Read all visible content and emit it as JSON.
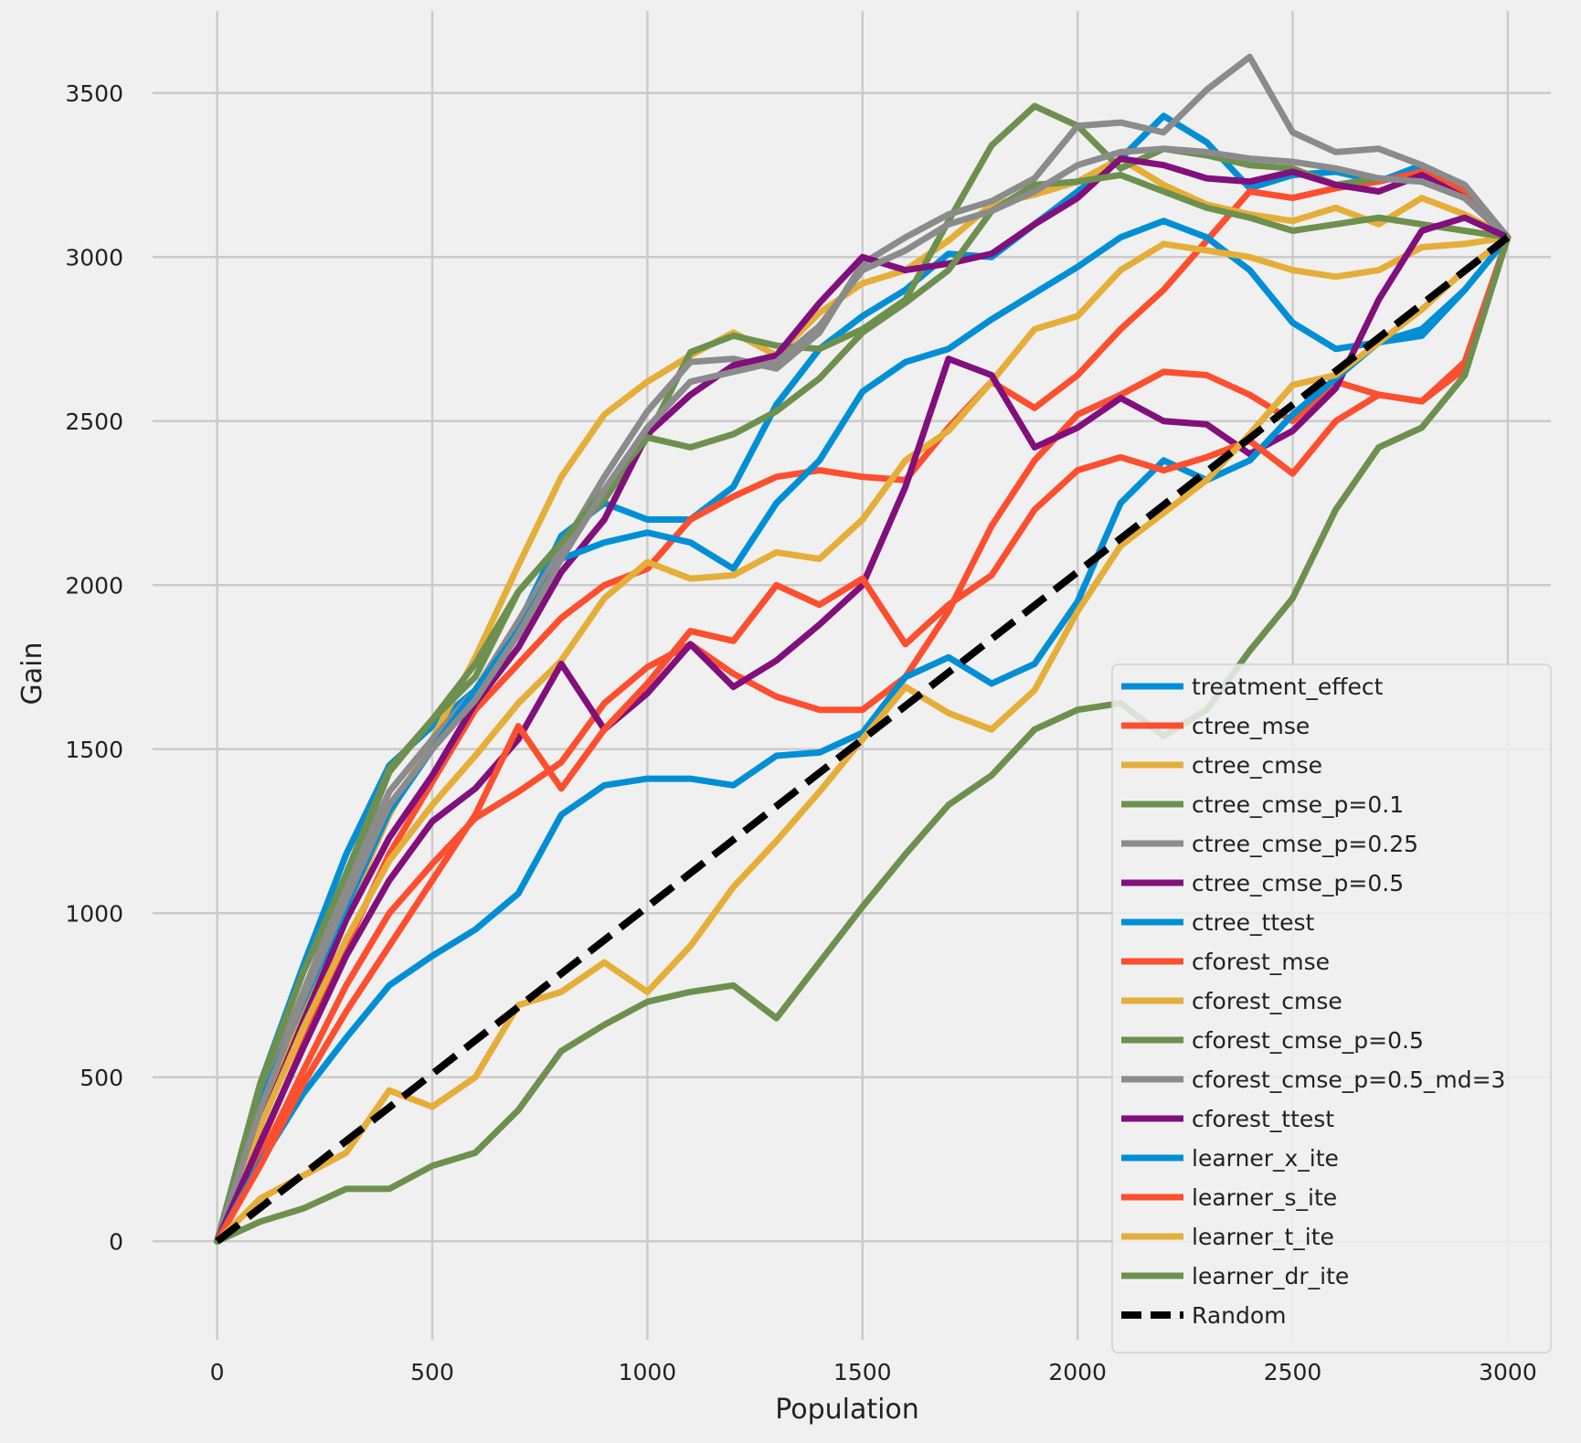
{
  "chart_data": {
    "type": "line",
    "title": "",
    "xlabel": "Population",
    "ylabel": "Gain",
    "xlim": [
      -150,
      3100
    ],
    "ylim": [
      -300,
      3750
    ],
    "x_ticks": [
      0,
      500,
      1000,
      1500,
      2000,
      2500,
      3000
    ],
    "y_ticks": [
      0,
      500,
      1000,
      1500,
      2000,
      2500,
      3000,
      3500
    ],
    "grid": true,
    "legend_position": "lower-right",
    "series": [
      {
        "name": "treatment_effect",
        "color": "#008fd5",
        "x": [
          0,
          100,
          200,
          300,
          400,
          500,
          600,
          700,
          800,
          900,
          1000,
          1100,
          1200,
          1300,
          1400,
          1500,
          1600,
          1700,
          1800,
          1900,
          2000,
          2100,
          2200,
          2300,
          2400,
          2500,
          2600,
          2700,
          2800,
          2900,
          3000
        ],
        "y": [
          0,
          480,
          840,
          1180,
          1450,
          1570,
          1680,
          1880,
          2150,
          2250,
          2200,
          2200,
          2300,
          2550,
          2720,
          2820,
          2900,
          3010,
          3000,
          3100,
          3200,
          3300,
          3430,
          3350,
          3210,
          3250,
          3260,
          3230,
          3280,
          3180,
          3060
        ]
      },
      {
        "name": "ctree_mse",
        "color": "#fc4f30",
        "x": [
          0,
          100,
          200,
          300,
          400,
          500,
          600,
          700,
          800,
          900,
          1000,
          1100,
          1200,
          1300,
          1400,
          1500,
          1600,
          1700,
          1800,
          1900,
          2000,
          2100,
          2200,
          2300,
          2400,
          2500,
          2600,
          2700,
          2800,
          2900,
          3000
        ],
        "y": [
          0,
          290,
          600,
          900,
          1180,
          1400,
          1620,
          1760,
          1900,
          2000,
          2050,
          2200,
          2270,
          2330,
          2350,
          2330,
          2320,
          2480,
          2620,
          2540,
          2640,
          2780,
          2900,
          3050,
          3200,
          3180,
          3210,
          3230,
          3260,
          3200,
          3060
        ]
      },
      {
        "name": "ctree_cmse",
        "color": "#e5ae38",
        "x": [
          0,
          100,
          200,
          300,
          400,
          500,
          600,
          700,
          800,
          900,
          1000,
          1100,
          1200,
          1300,
          1400,
          1500,
          1600,
          1700,
          1800,
          1900,
          2000,
          2100,
          2200,
          2300,
          2400,
          2500,
          2600,
          2700,
          2800,
          2900,
          3000
        ],
        "y": [
          0,
          400,
          720,
          1000,
          1300,
          1530,
          1780,
          2060,
          2330,
          2520,
          2620,
          2700,
          2770,
          2700,
          2830,
          2920,
          2960,
          3050,
          3160,
          3190,
          3230,
          3300,
          3220,
          3160,
          3130,
          3110,
          3150,
          3100,
          3180,
          3130,
          3060
        ]
      },
      {
        "name": "ctree_cmse_p=0.1",
        "color": "#6d904f",
        "x": [
          0,
          100,
          200,
          300,
          400,
          500,
          600,
          700,
          800,
          900,
          1000,
          1100,
          1200,
          1300,
          1400,
          1500,
          1600,
          1700,
          1800,
          1900,
          2000,
          2100,
          2200,
          2300,
          2400,
          2500,
          2600,
          2700,
          2800,
          2900,
          3000
        ],
        "y": [
          0,
          480,
          820,
          1100,
          1430,
          1590,
          1720,
          1980,
          2130,
          2260,
          2450,
          2710,
          2760,
          2730,
          2720,
          2780,
          2870,
          3110,
          3340,
          3460,
          3400,
          3270,
          3330,
          3310,
          3280,
          3270,
          3220,
          3240,
          3230,
          3180,
          3060
        ]
      },
      {
        "name": "ctree_cmse_p=0.25",
        "color": "#8b8b8b",
        "x": [
          0,
          100,
          200,
          300,
          400,
          500,
          600,
          700,
          800,
          900,
          1000,
          1100,
          1200,
          1300,
          1400,
          1500,
          1600,
          1700,
          1800,
          1900,
          2000,
          2100,
          2200,
          2300,
          2400,
          2500,
          2600,
          2700,
          2800,
          2900,
          3000
        ],
        "y": [
          0,
          430,
          760,
          1080,
          1370,
          1530,
          1680,
          1890,
          2110,
          2330,
          2530,
          2680,
          2690,
          2660,
          2770,
          2980,
          3060,
          3130,
          3170,
          3240,
          3400,
          3410,
          3380,
          3510,
          3610,
          3380,
          3320,
          3330,
          3280,
          3220,
          3060
        ]
      },
      {
        "name": "ctree_cmse_p=0.5",
        "color": "#810f7c",
        "x": [
          0,
          100,
          200,
          300,
          400,
          500,
          600,
          700,
          800,
          900,
          1000,
          1100,
          1200,
          1300,
          1400,
          1500,
          1600,
          1700,
          1800,
          1900,
          2000,
          2100,
          2200,
          2300,
          2400,
          2500,
          2600,
          2700,
          2800,
          2900,
          3000
        ],
        "y": [
          0,
          350,
          670,
          980,
          1230,
          1420,
          1640,
          1810,
          2040,
          2200,
          2460,
          2580,
          2670,
          2700,
          2860,
          3000,
          2960,
          2980,
          3010,
          3100,
          3180,
          3300,
          3280,
          3240,
          3230,
          3260,
          3220,
          3200,
          3250,
          3180,
          3060
        ]
      },
      {
        "name": "ctree_ttest",
        "color": "#008fd5",
        "x": [
          0,
          100,
          200,
          300,
          400,
          500,
          600,
          700,
          800,
          900,
          1000,
          1100,
          1200,
          1300,
          1400,
          1500,
          1600,
          1700,
          1800,
          1900,
          2000,
          2100,
          2200,
          2300,
          2400,
          2500,
          2600,
          2700,
          2800,
          2900,
          3000
        ],
        "y": [
          0,
          420,
          730,
          1020,
          1310,
          1500,
          1680,
          1860,
          2080,
          2130,
          2160,
          2130,
          2050,
          2250,
          2380,
          2590,
          2680,
          2720,
          2810,
          2890,
          2970,
          3060,
          3110,
          3060,
          2960,
          2800,
          2720,
          2740,
          2780,
          2900,
          3060
        ]
      },
      {
        "name": "cforest_mse",
        "color": "#fc4f30",
        "x": [
          0,
          100,
          200,
          300,
          400,
          500,
          600,
          700,
          800,
          900,
          1000,
          1100,
          1200,
          1300,
          1400,
          1500,
          1600,
          1700,
          1800,
          1900,
          2000,
          2100,
          2200,
          2300,
          2400,
          2500,
          2600,
          2700,
          2800,
          2900,
          3000
        ],
        "y": [
          0,
          250,
          520,
          780,
          1000,
          1150,
          1290,
          1370,
          1460,
          1640,
          1750,
          1820,
          1730,
          1660,
          1620,
          1620,
          1720,
          1920,
          2180,
          2380,
          2520,
          2580,
          2650,
          2640,
          2580,
          2500,
          2620,
          2580,
          2560,
          2680,
          3060
        ]
      },
      {
        "name": "cforest_cmse",
        "color": "#e5ae38",
        "x": [
          0,
          100,
          200,
          300,
          400,
          500,
          600,
          700,
          800,
          900,
          1000,
          1100,
          1200,
          1300,
          1400,
          1500,
          1600,
          1700,
          1800,
          1900,
          2000,
          2100,
          2200,
          2300,
          2400,
          2500,
          2600,
          2700,
          2800,
          2900,
          3000
        ],
        "y": [
          0,
          350,
          650,
          920,
          1160,
          1330,
          1480,
          1640,
          1770,
          1960,
          2070,
          2020,
          2030,
          2100,
          2080,
          2200,
          2380,
          2470,
          2620,
          2780,
          2820,
          2960,
          3040,
          3020,
          3000,
          2960,
          2940,
          2960,
          3030,
          3040,
          3060
        ]
      },
      {
        "name": "cforest_cmse_p=0.5",
        "color": "#6d904f",
        "x": [
          0,
          100,
          200,
          300,
          400,
          500,
          600,
          700,
          800,
          900,
          1000,
          1100,
          1200,
          1300,
          1400,
          1500,
          1600,
          1700,
          1800,
          1900,
          2000,
          2100,
          2200,
          2300,
          2400,
          2500,
          2600,
          2700,
          2800,
          2900,
          3000
        ],
        "y": [
          0,
          470,
          820,
          1120,
          1440,
          1590,
          1760,
          1980,
          2130,
          2290,
          2450,
          2420,
          2460,
          2530,
          2630,
          2770,
          2860,
          2960,
          3140,
          3220,
          3230,
          3250,
          3200,
          3150,
          3120,
          3080,
          3100,
          3120,
          3100,
          3080,
          3060
        ]
      },
      {
        "name": "cforest_cmse_p=0.5_md=3",
        "color": "#8b8b8b",
        "x": [
          0,
          100,
          200,
          300,
          400,
          500,
          600,
          700,
          800,
          900,
          1000,
          1100,
          1200,
          1300,
          1400,
          1500,
          1600,
          1700,
          1800,
          1900,
          2000,
          2100,
          2200,
          2300,
          2400,
          2500,
          2600,
          2700,
          2800,
          2900,
          3000
        ],
        "y": [
          0,
          400,
          740,
          1040,
          1330,
          1500,
          1650,
          1850,
          2080,
          2290,
          2480,
          2620,
          2650,
          2680,
          2790,
          2960,
          3020,
          3100,
          3140,
          3200,
          3280,
          3320,
          3330,
          3320,
          3300,
          3290,
          3270,
          3240,
          3230,
          3180,
          3060
        ]
      },
      {
        "name": "cforest_ttest",
        "color": "#810f7c",
        "x": [
          0,
          100,
          200,
          300,
          400,
          500,
          600,
          700,
          800,
          900,
          1000,
          1100,
          1200,
          1300,
          1400,
          1500,
          1600,
          1700,
          1800,
          1900,
          2000,
          2100,
          2200,
          2300,
          2400,
          2500,
          2600,
          2700,
          2800,
          2900,
          3000
        ],
        "y": [
          0,
          300,
          590,
          870,
          1100,
          1280,
          1380,
          1530,
          1760,
          1560,
          1670,
          1820,
          1690,
          1770,
          1880,
          2000,
          2300,
          2690,
          2640,
          2420,
          2480,
          2570,
          2500,
          2490,
          2400,
          2470,
          2600,
          2870,
          3080,
          3120,
          3060
        ]
      },
      {
        "name": "learner_x_ite",
        "color": "#008fd5",
        "x": [
          0,
          100,
          200,
          300,
          400,
          500,
          600,
          700,
          800,
          900,
          1000,
          1100,
          1200,
          1300,
          1400,
          1500,
          1600,
          1700,
          1800,
          1900,
          2000,
          2100,
          2200,
          2300,
          2400,
          2500,
          2600,
          2700,
          2800,
          2900,
          3000
        ],
        "y": [
          0,
          240,
          450,
          620,
          780,
          870,
          950,
          1060,
          1300,
          1390,
          1410,
          1410,
          1390,
          1480,
          1490,
          1550,
          1720,
          1780,
          1700,
          1760,
          1950,
          2250,
          2380,
          2320,
          2380,
          2520,
          2630,
          2740,
          2760,
          2900,
          3060
        ]
      },
      {
        "name": "learner_s_ite",
        "color": "#fc4f30",
        "x": [
          0,
          100,
          200,
          300,
          400,
          500,
          600,
          700,
          800,
          900,
          1000,
          1100,
          1200,
          1300,
          1400,
          1500,
          1600,
          1700,
          1800,
          1900,
          2000,
          2100,
          2200,
          2300,
          2400,
          2500,
          2600,
          2700,
          2800,
          2900,
          3000
        ],
        "y": [
          0,
          230,
          480,
          700,
          900,
          1100,
          1300,
          1570,
          1380,
          1560,
          1700,
          1860,
          1830,
          2000,
          1940,
          2020,
          1820,
          1940,
          2030,
          2230,
          2350,
          2390,
          2350,
          2390,
          2440,
          2340,
          2500,
          2580,
          2560,
          2660,
          3060
        ]
      },
      {
        "name": "learner_t_ite",
        "color": "#e5ae38",
        "x": [
          0,
          100,
          200,
          300,
          400,
          500,
          600,
          700,
          800,
          900,
          1000,
          1100,
          1200,
          1300,
          1400,
          1500,
          1600,
          1700,
          1800,
          1900,
          2000,
          2100,
          2200,
          2300,
          2400,
          2500,
          2600,
          2700,
          2800,
          2900,
          3000
        ],
        "y": [
          0,
          130,
          200,
          270,
          460,
          410,
          500,
          720,
          760,
          850,
          760,
          900,
          1080,
          1220,
          1370,
          1530,
          1690,
          1610,
          1560,
          1680,
          1920,
          2120,
          2220,
          2320,
          2460,
          2610,
          2640,
          2740,
          2840,
          2960,
          3060
        ]
      },
      {
        "name": "learner_dr_ite",
        "color": "#6d904f",
        "x": [
          0,
          100,
          200,
          300,
          400,
          500,
          600,
          700,
          800,
          900,
          1000,
          1100,
          1200,
          1300,
          1400,
          1500,
          1600,
          1700,
          1800,
          1900,
          2000,
          2100,
          2200,
          2300,
          2400,
          2500,
          2600,
          2700,
          2800,
          2900,
          3000
        ],
        "y": [
          0,
          60,
          100,
          160,
          160,
          230,
          270,
          400,
          580,
          660,
          730,
          760,
          780,
          680,
          850,
          1020,
          1180,
          1330,
          1420,
          1560,
          1620,
          1640,
          1540,
          1620,
          1800,
          1960,
          2230,
          2420,
          2480,
          2640,
          3060
        ]
      },
      {
        "name": "Random",
        "color": "#000000",
        "dashed": true,
        "x": [
          0,
          3000
        ],
        "y": [
          0,
          3060
        ]
      }
    ]
  }
}
